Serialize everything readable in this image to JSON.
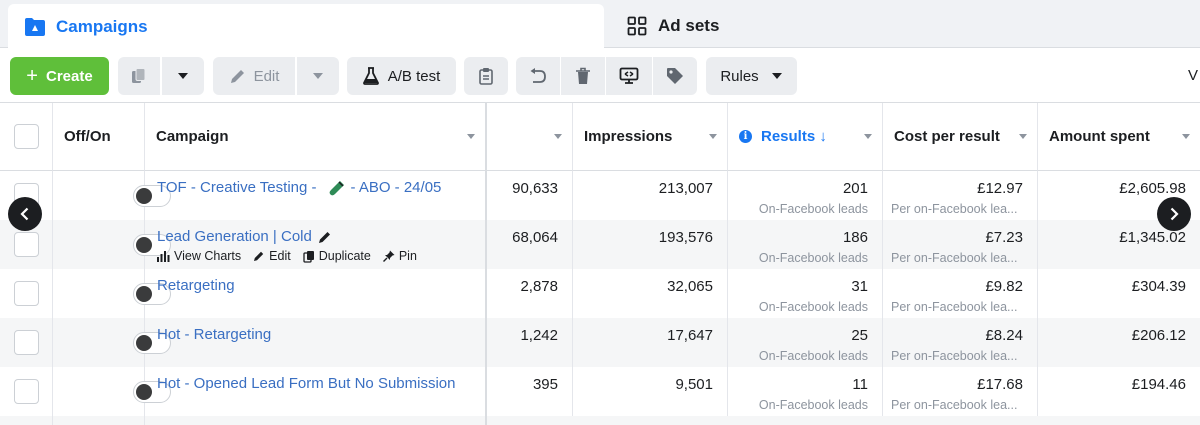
{
  "tabs": [
    {
      "label": "Campaigns",
      "icon": "campaigns-folder-icon",
      "active": true
    },
    {
      "label": "Ad sets",
      "icon": "grid-icon",
      "active": false
    }
  ],
  "toolbar": {
    "create_label": "Create",
    "edit_label": "Edit",
    "ab_test_label": "A/B test",
    "rules_label": "Rules",
    "truncated_label": "V",
    "accent": "#5fbf3a"
  },
  "table": {
    "headers": {
      "off_on": "Off/On",
      "campaign": "Campaign",
      "col3": "",
      "impressions": "Impressions",
      "results": "Results ↓",
      "cost_per_result": "Cost per result",
      "amount_spent": "Amount spent"
    },
    "row_actions": {
      "view_charts": "View Charts",
      "edit": "Edit",
      "duplicate": "Duplicate",
      "pin": "Pin"
    },
    "rows": [
      {
        "name_a": "TOF - Creative Testing -",
        "name_b": "- ABO - 24/05",
        "col3": "90,633",
        "impressions": "213,007",
        "results": "201",
        "results_sub": "On-Facebook leads",
        "cost": "£12.97",
        "cost_sub": "Per on-Facebook lea...",
        "spent": "£2,605.98"
      },
      {
        "name": "Lead Generation | Cold",
        "col3": "68,064",
        "impressions": "193,576",
        "results": "186",
        "results_sub": "On-Facebook leads",
        "cost": "£7.23",
        "cost_sub": "Per on-Facebook lea...",
        "spent": "£1,345.02"
      },
      {
        "name": "Retargeting",
        "col3": "2,878",
        "impressions": "32,065",
        "results": "31",
        "results_sub": "On-Facebook leads",
        "cost": "£9.82",
        "cost_sub": "Per on-Facebook lea...",
        "spent": "£304.39"
      },
      {
        "name": "Hot - Retargeting",
        "col3": "1,242",
        "impressions": "17,647",
        "results": "25",
        "results_sub": "On-Facebook leads",
        "cost": "£8.24",
        "cost_sub": "Per on-Facebook lea...",
        "spent": "£206.12"
      },
      {
        "name": "Hot - Opened Lead Form But No Submission",
        "col3": "395",
        "impressions": "9,501",
        "results": "11",
        "results_sub": "On-Facebook leads",
        "cost": "£17.68",
        "cost_sub": "Per on-Facebook lea...",
        "spent": "£194.46"
      }
    ]
  },
  "colors": {
    "link_blue": "#3a6fc2",
    "brand_blue": "#1877f2",
    "muted_gray": "#8d949e"
  }
}
